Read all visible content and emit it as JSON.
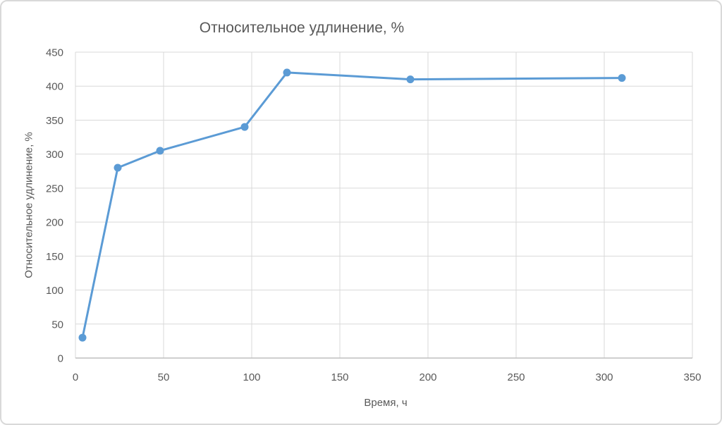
{
  "chart_data": {
    "type": "line",
    "title": "Относительное удлинение, %",
    "xlabel": "Время, ч",
    "ylabel": "Относительное удлинение, %",
    "x": [
      4,
      24,
      48,
      96,
      120,
      190,
      310
    ],
    "y": [
      30,
      280,
      305,
      340,
      420,
      410,
      412
    ],
    "xlim": [
      0,
      350
    ],
    "ylim": [
      0,
      450
    ],
    "x_ticks": [
      0,
      50,
      100,
      150,
      200,
      250,
      300,
      350
    ],
    "y_ticks": [
      0,
      50,
      100,
      150,
      200,
      250,
      300,
      350,
      400,
      450
    ],
    "grid": true,
    "legend": "none",
    "colors": {
      "series": "#5B9BD5",
      "gridline": "#D9D9D9",
      "axis_line": "#BFBFBF",
      "text": "#595959",
      "background": "#FFFFFF",
      "frame_border": "#D9D9D9"
    }
  }
}
